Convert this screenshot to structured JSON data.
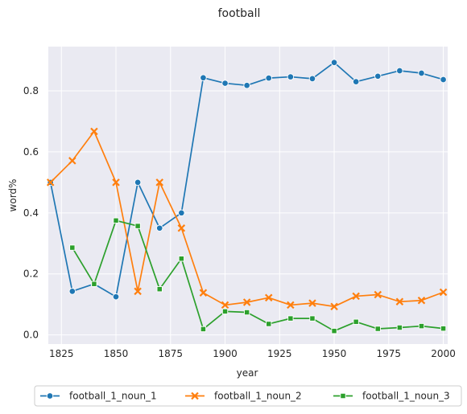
{
  "chart_data": {
    "type": "line",
    "title": "football",
    "xlabel": "year",
    "ylabel": "word%",
    "xlim": [
      1819,
      2002
    ],
    "ylim": [
      -0.03,
      0.945
    ],
    "xticks": [
      1825,
      1850,
      1875,
      1900,
      1925,
      1950,
      1975,
      2000
    ],
    "yticks": [
      0.0,
      0.2,
      0.4,
      0.6,
      0.8
    ],
    "xtick_labels": [
      "1825",
      "1850",
      "1875",
      "1900",
      "1925",
      "1950",
      "1975",
      "2000"
    ],
    "ytick_labels": [
      "0.0",
      "0.2",
      "0.4",
      "0.6",
      "0.8"
    ],
    "grid": true,
    "legend_position": "bottom-center",
    "series": [
      {
        "name": "football_1_noun_1",
        "color": "#1f77b4",
        "marker": "circle",
        "x": [
          1820,
          1830,
          1840,
          1850,
          1860,
          1870,
          1880,
          1890,
          1900,
          1910,
          1920,
          1930,
          1940,
          1950,
          1960,
          1970,
          1980,
          1990,
          2000
        ],
        "y": [
          0.5,
          0.143,
          0.167,
          0.125,
          0.5,
          0.35,
          0.4,
          0.843,
          0.825,
          0.818,
          0.842,
          0.846,
          0.84,
          0.893,
          0.83,
          0.848,
          0.866,
          0.858,
          0.837
        ]
      },
      {
        "name": "football_1_noun_2",
        "color": "#ff7f0e",
        "marker": "x",
        "x": [
          1820,
          1830,
          1840,
          1850,
          1860,
          1870,
          1880,
          1890,
          1900,
          1910,
          1920,
          1930,
          1940,
          1950,
          1960,
          1970,
          1980,
          1990,
          2000
        ],
        "y": [
          0.5,
          0.571,
          0.667,
          0.5,
          0.143,
          0.5,
          0.35,
          0.138,
          0.098,
          0.107,
          0.122,
          0.098,
          0.104,
          0.093,
          0.127,
          0.132,
          0.109,
          0.113,
          0.14
        ]
      },
      {
        "name": "football_1_noun_3",
        "color": "#2ca02c",
        "marker": "square",
        "x": [
          1830,
          1840,
          1850,
          1860,
          1870,
          1880,
          1890,
          1900,
          1910,
          1920,
          1930,
          1940,
          1950,
          1960,
          1970,
          1980,
          1990,
          2000
        ],
        "y": [
          0.286,
          0.167,
          0.375,
          0.357,
          0.15,
          0.25,
          0.019,
          0.077,
          0.074,
          0.036,
          0.054,
          0.054,
          0.013,
          0.043,
          0.02,
          0.024,
          0.029,
          0.021
        ]
      }
    ]
  }
}
